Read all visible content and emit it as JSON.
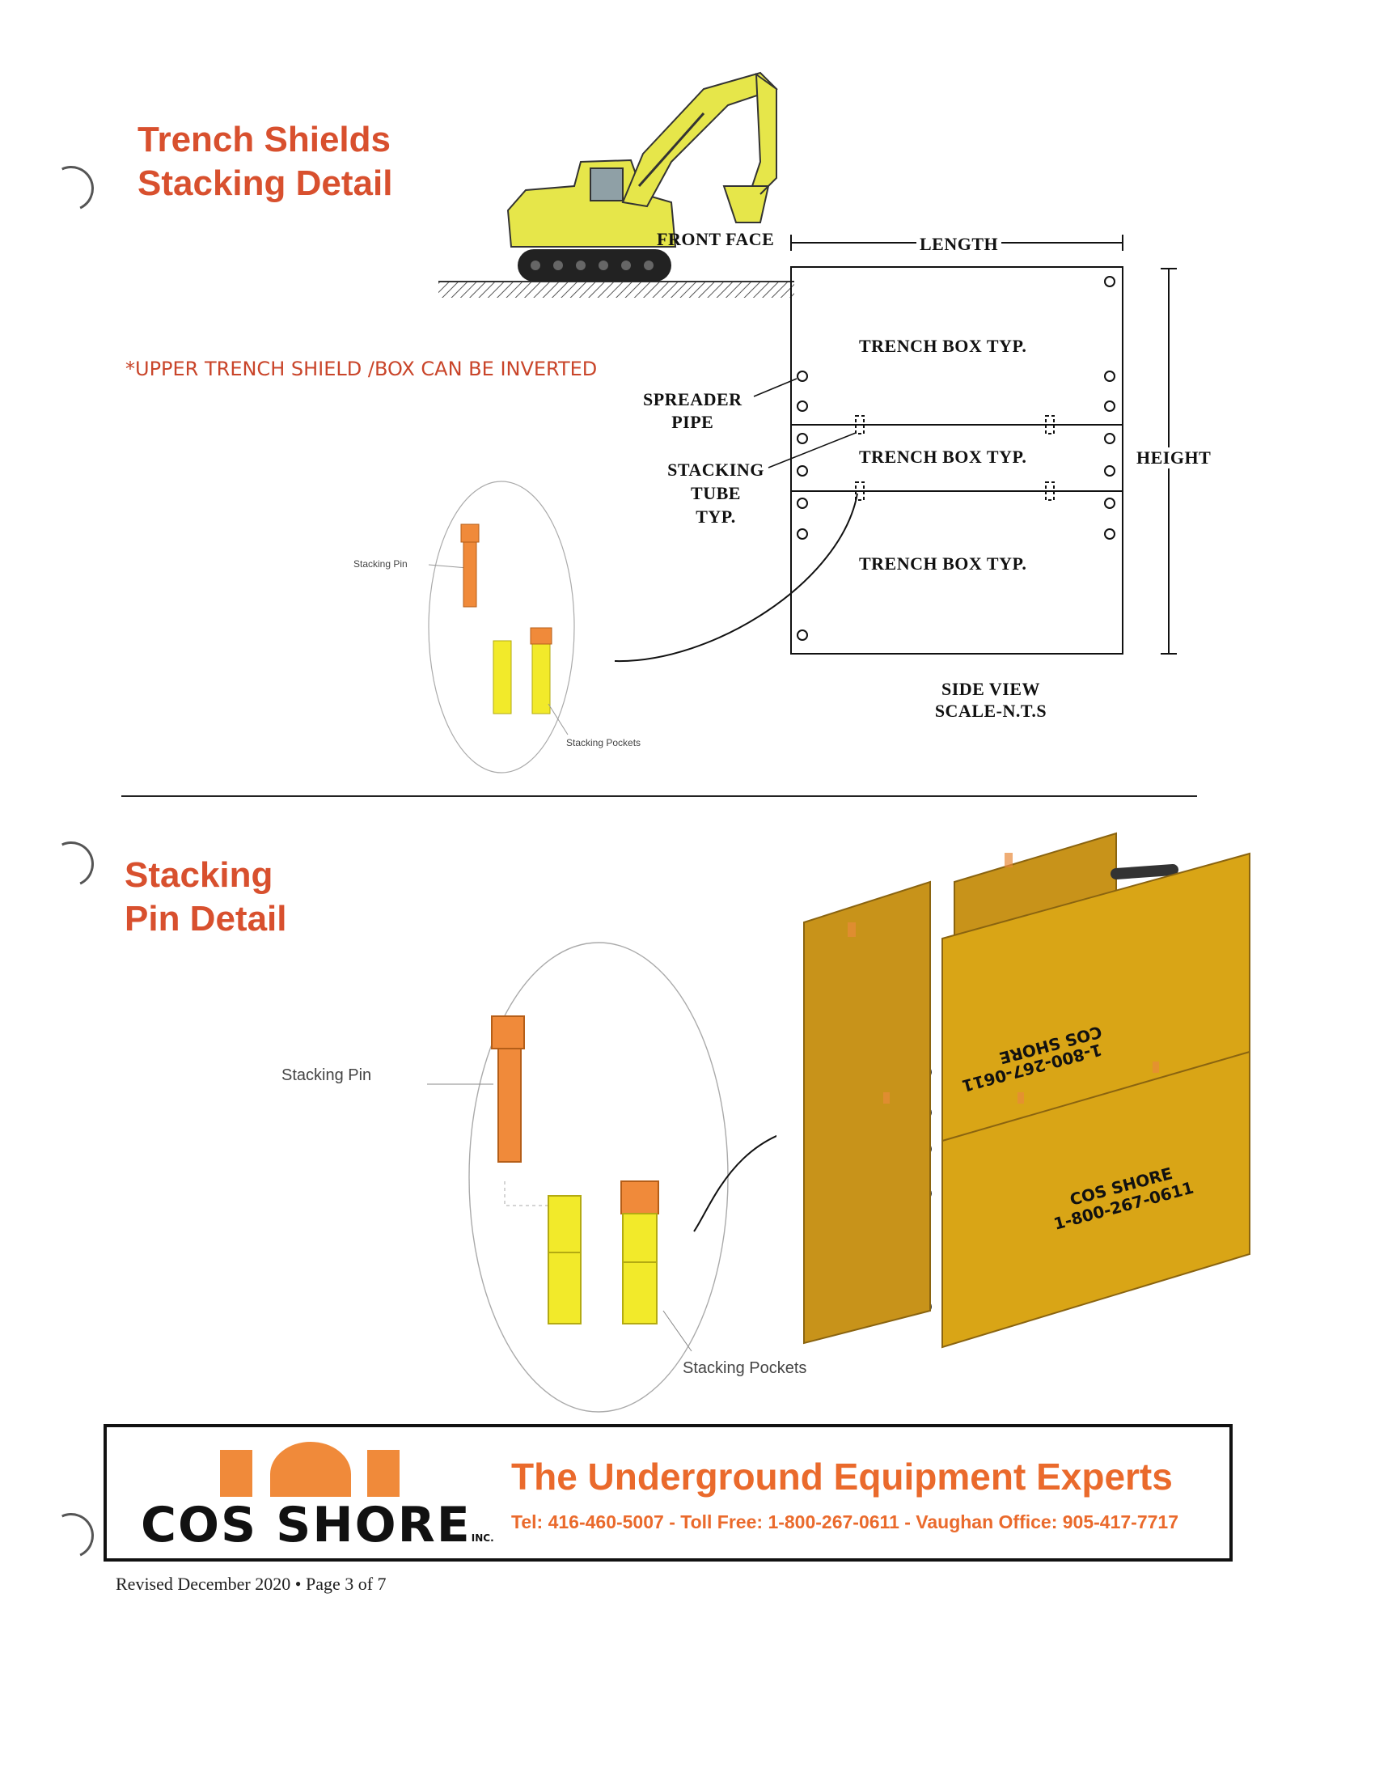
{
  "section1": {
    "title_line1": "Trench Shields",
    "title_line2": "Stacking Detail",
    "note": "*UPPER TRENCH SHIELD /BOX CAN BE INVERTED",
    "labels": {
      "front_face": "FRONT FACE",
      "length": "LENGTH",
      "height": "HEIGHT",
      "box1": "TRENCH BOX TYP.",
      "box2": "TRENCH BOX TYP.",
      "box3": "TRENCH BOX TYP.",
      "spreader_1": "SPREADER",
      "spreader_2": "PIPE",
      "stacking_1": "STACKING",
      "stacking_2": "TUBE",
      "stacking_3": "TYP.",
      "side_view": "SIDE VIEW",
      "scale": "SCALE-N.T.S"
    },
    "detail_small": {
      "pin": "Stacking Pin",
      "pockets": "Stacking Pockets"
    }
  },
  "section2": {
    "title_line1": "Stacking",
    "title_line2": "Pin Detail",
    "pin": "Stacking Pin",
    "pockets": "Stacking Pockets",
    "box_text_top_1": "1-800-267-0611",
    "box_text_top_2": "COS SHORE",
    "box_text_bottom_1": "COS SHORE",
    "box_text_bottom_2": "1-800-267-0611"
  },
  "footer": {
    "brand": "COS SHORE",
    "brand_suffix": "INC.",
    "tagline": "The Underground Equipment Experts",
    "contact": "Tel: 416-460-5007 - Toll Free: 1-800-267-0611 - Vaughan Office: 905-417-7717",
    "revised": "Revised December 2020 • Page 3 of 7"
  },
  "colors": {
    "title_red": "#d8502e",
    "tagline_orange": "#ea6a2c",
    "box_yellow": "#d9a516",
    "pin_orange": "#f08a3a",
    "pocket_yellow": "#f2ea2a"
  }
}
